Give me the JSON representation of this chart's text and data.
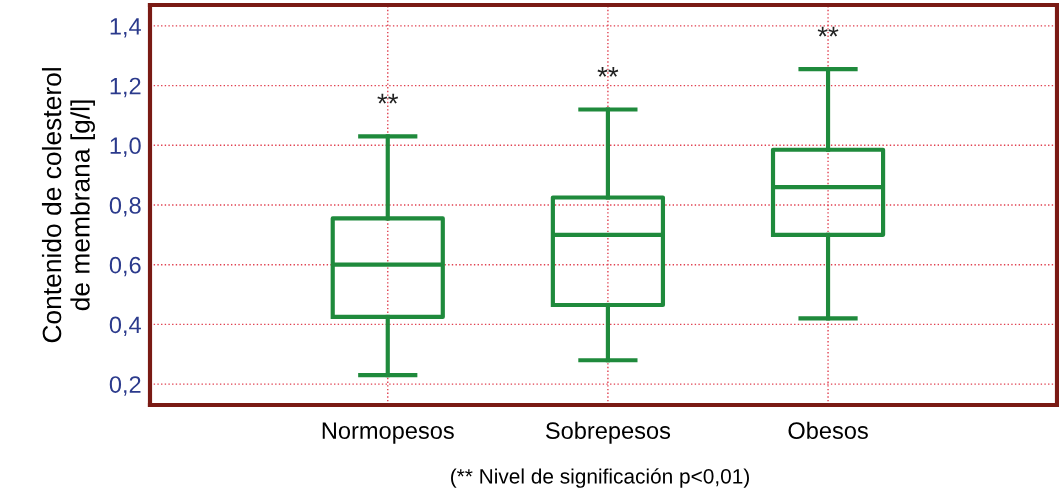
{
  "chart_data": {
    "type": "box",
    "ylabel": "Contenido de colesterol\nde membrana [g/l]",
    "categories": [
      "Normopesos",
      "Sobrepesos",
      "Obesos"
    ],
    "boxes": [
      {
        "low": 0.23,
        "q1": 0.425,
        "median": 0.6,
        "q3": 0.755,
        "high": 1.03
      },
      {
        "low": 0.28,
        "q1": 0.465,
        "median": 0.7,
        "q3": 0.825,
        "high": 1.12
      },
      {
        "low": 0.42,
        "q1": 0.7,
        "median": 0.86,
        "q3": 0.985,
        "high": 1.255
      }
    ],
    "color": "#1f8a3c",
    "ylim": [
      0.13,
      1.47
    ],
    "yticks": [
      {
        "value": 0.2,
        "label": "0,2"
      },
      {
        "value": 0.4,
        "label": "0,4"
      },
      {
        "value": 0.6,
        "label": "0,6"
      },
      {
        "value": 0.8,
        "label": "0,8"
      },
      {
        "value": 1.0,
        "label": "1,0"
      },
      {
        "value": 1.2,
        "label": "1,2"
      },
      {
        "value": 1.4,
        "label": "1,4"
      }
    ],
    "grid": true,
    "annotations": [
      "**",
      "**",
      "**",
      "(** Nivel de significación p<0,01)"
    ]
  }
}
